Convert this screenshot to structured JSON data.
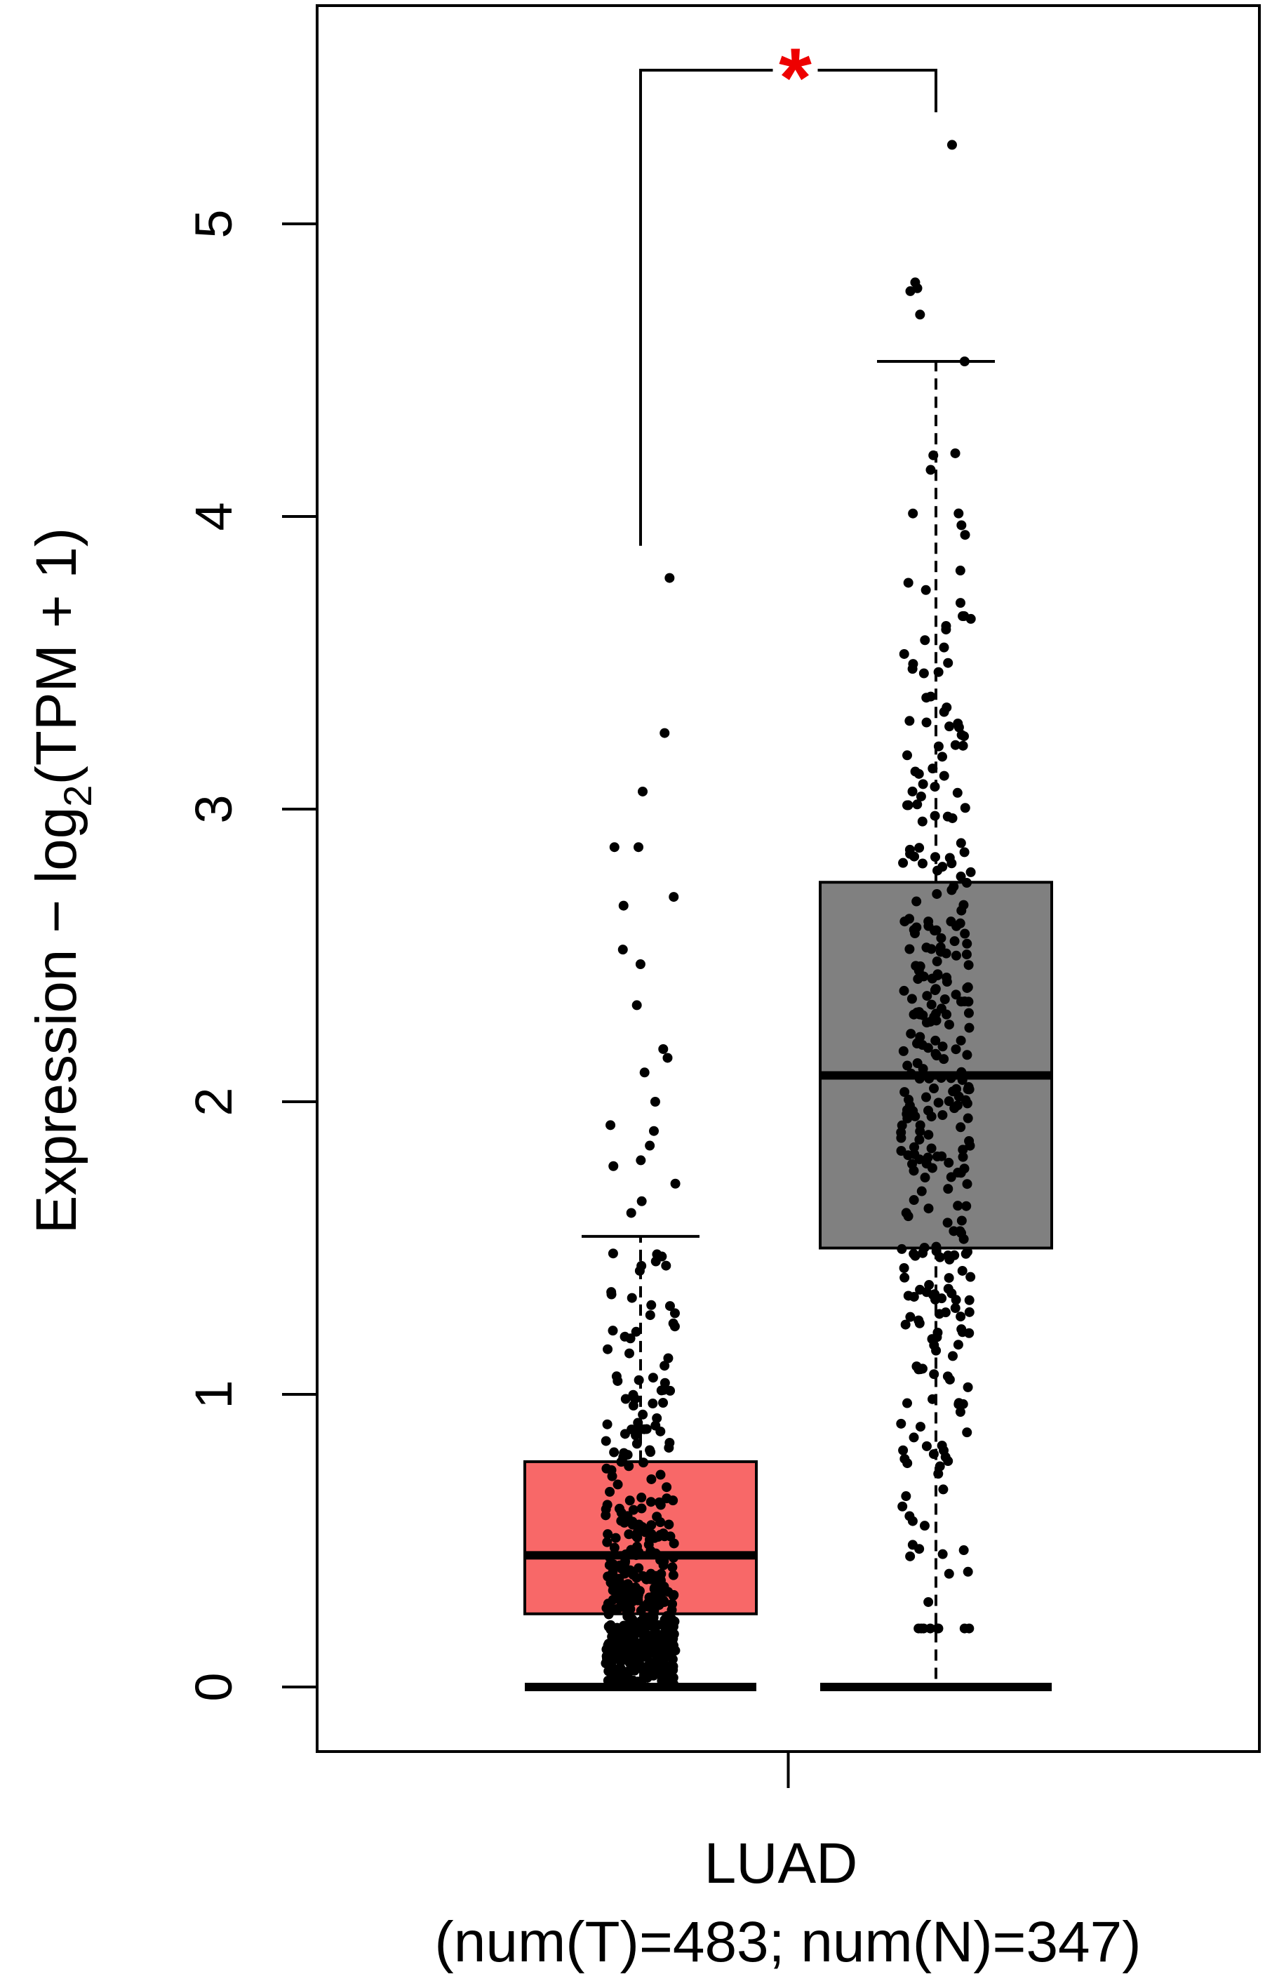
{
  "chart_data": {
    "type": "box",
    "title": "",
    "ylabel_main": "Expression − log",
    "ylabel_sub": "2",
    "ylabel_rest": "(TPM + 1)",
    "ylim": [
      -0.22,
      5.75
    ],
    "yticks": [
      0,
      1,
      2,
      3,
      4,
      5
    ],
    "ytick_labels": [
      "0",
      "1",
      "2",
      "3",
      "4",
      "5"
    ],
    "category": "LUAD",
    "category_sub": "(num(T)=483; num(N)=347)",
    "significance": "*",
    "grid": false,
    "legend": "none",
    "series": [
      {
        "group": "T",
        "count": 483,
        "color": "#f86868",
        "min": 0,
        "q1": 0.25,
        "median": 0.45,
        "q3": 0.77,
        "whisker_high": 1.54,
        "outliers": [
          1.62,
          1.66,
          1.72,
          1.78,
          1.8,
          1.85,
          1.9,
          1.92,
          2.0,
          2.1,
          2.15,
          2.18,
          2.33,
          2.47,
          2.52,
          2.67,
          2.7,
          2.87,
          2.87,
          3.06,
          3.26,
          3.79
        ]
      },
      {
        "group": "N",
        "count": 347,
        "color": "#808080",
        "min": 0,
        "q1": 1.5,
        "median": 2.09,
        "q3": 2.75,
        "whisker_high": 4.53,
        "outliers": [
          4.69,
          4.77,
          4.78,
          4.8,
          5.27
        ]
      }
    ]
  }
}
